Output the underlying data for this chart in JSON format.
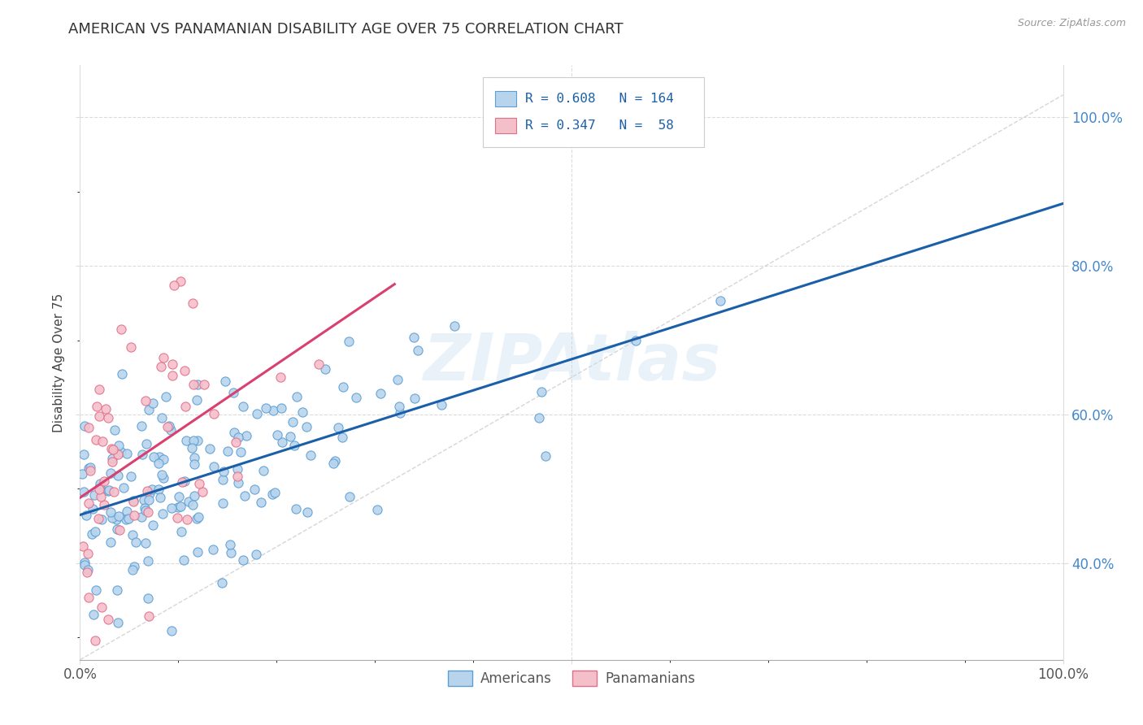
{
  "title": "AMERICAN VS PANAMANIAN DISABILITY AGE OVER 75 CORRELATION CHART",
  "source": "Source: ZipAtlas.com",
  "ylabel": "Disability Age Over 75",
  "american_R": 0.608,
  "american_N": 164,
  "panamanian_R": 0.347,
  "panamanian_N": 58,
  "american_color": "#b8d4ed",
  "american_edge": "#5b9fd4",
  "panamanian_color": "#f5bfca",
  "panamanian_edge": "#e0708a",
  "trend_american_color": "#1a5fa8",
  "trend_panamanian_color": "#d94070",
  "diagonal_color": "#bbbbbb",
  "watermark": "ZIPAtlas",
  "background_color": "#ffffff",
  "grid_color": "#cccccc",
  "right_tick_color": "#4488cc",
  "title_color": "#333333",
  "source_color": "#999999"
}
